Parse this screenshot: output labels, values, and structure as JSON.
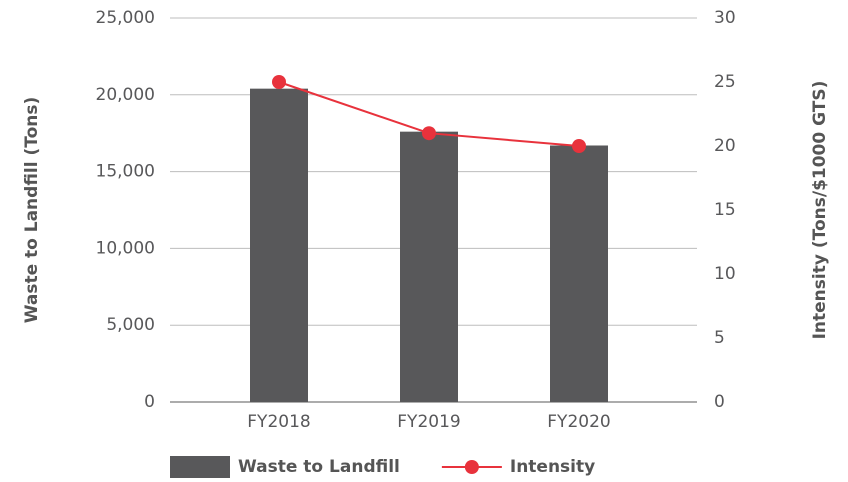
{
  "chart_data": {
    "type": "bar_line",
    "categories": [
      "FY2018",
      "FY2019",
      "FY2020"
    ],
    "series": [
      {
        "name": "Waste to Landfill",
        "type": "bar",
        "color": "#58585a",
        "values": [
          20400,
          17600,
          16700
        ]
      },
      {
        "name": "Intensity",
        "type": "line",
        "axis": "y2",
        "color": "#e8323c",
        "values": [
          25,
          21,
          20
        ]
      }
    ],
    "ylabel": "Waste to Landfill (Tons)",
    "y2label": "Intensity (Tons/$1000 GTS)",
    "ylim": [
      0,
      25000
    ],
    "yticks": [
      0,
      {
        "value": 5000,
        "label": "5,000"
      },
      {
        "value": 10000,
        "label": "10,000"
      },
      {
        "value": 15000,
        "label": "15,000"
      },
      {
        "value": 20000,
        "label": "20,000"
      },
      {
        "value": 25000,
        "label": "25,000"
      }
    ],
    "y2lim": [
      0,
      30
    ],
    "y2ticks": [
      0,
      5,
      10,
      15,
      20,
      25,
      30
    ],
    "grid": true,
    "legend": "bottom"
  }
}
